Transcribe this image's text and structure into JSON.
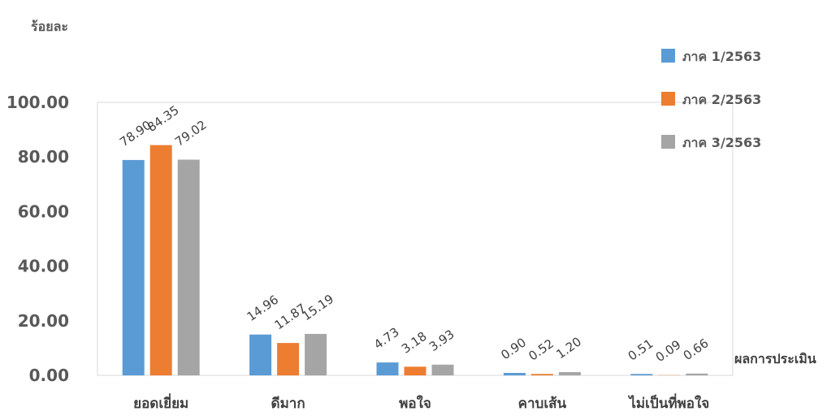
{
  "chart_data": {
    "type": "bar",
    "ylabel": "ร้อยละ",
    "xlabel": "ผลการประเมิน",
    "categories": [
      "ยอดเยี่ยม",
      "ดีมาก",
      "พอใจ",
      "คาบเส้น",
      "ไม่เป็นที่พอใจ"
    ],
    "series": [
      {
        "name": "ภาค 1/2563",
        "color": "#5B9BD5",
        "values": [
          78.9,
          14.96,
          4.73,
          0.9,
          0.51
        ]
      },
      {
        "name": "ภาค 2/2563",
        "color": "#ED7D31",
        "values": [
          84.35,
          11.87,
          3.18,
          0.52,
          0.09
        ]
      },
      {
        "name": "ภาค 3/2563",
        "color": "#A5A5A5",
        "values": [
          79.02,
          15.19,
          3.93,
          1.2,
          0.66
        ]
      }
    ],
    "data_labels": [
      [
        "78.90",
        "84.35",
        "79.02"
      ],
      [
        "14.96",
        "11.87",
        "15.19"
      ],
      [
        "4.73",
        "3.18",
        "3.93"
      ],
      [
        "0.90",
        "0.52",
        "1.20"
      ],
      [
        "0.51",
        "0.09",
        "0.66"
      ]
    ],
    "ylim": [
      0,
      100
    ],
    "yticks": [
      "0.00",
      "20.00",
      "40.00",
      "60.00",
      "80.00",
      "100.00"
    ],
    "grid": false,
    "legend_position": "top-right"
  }
}
